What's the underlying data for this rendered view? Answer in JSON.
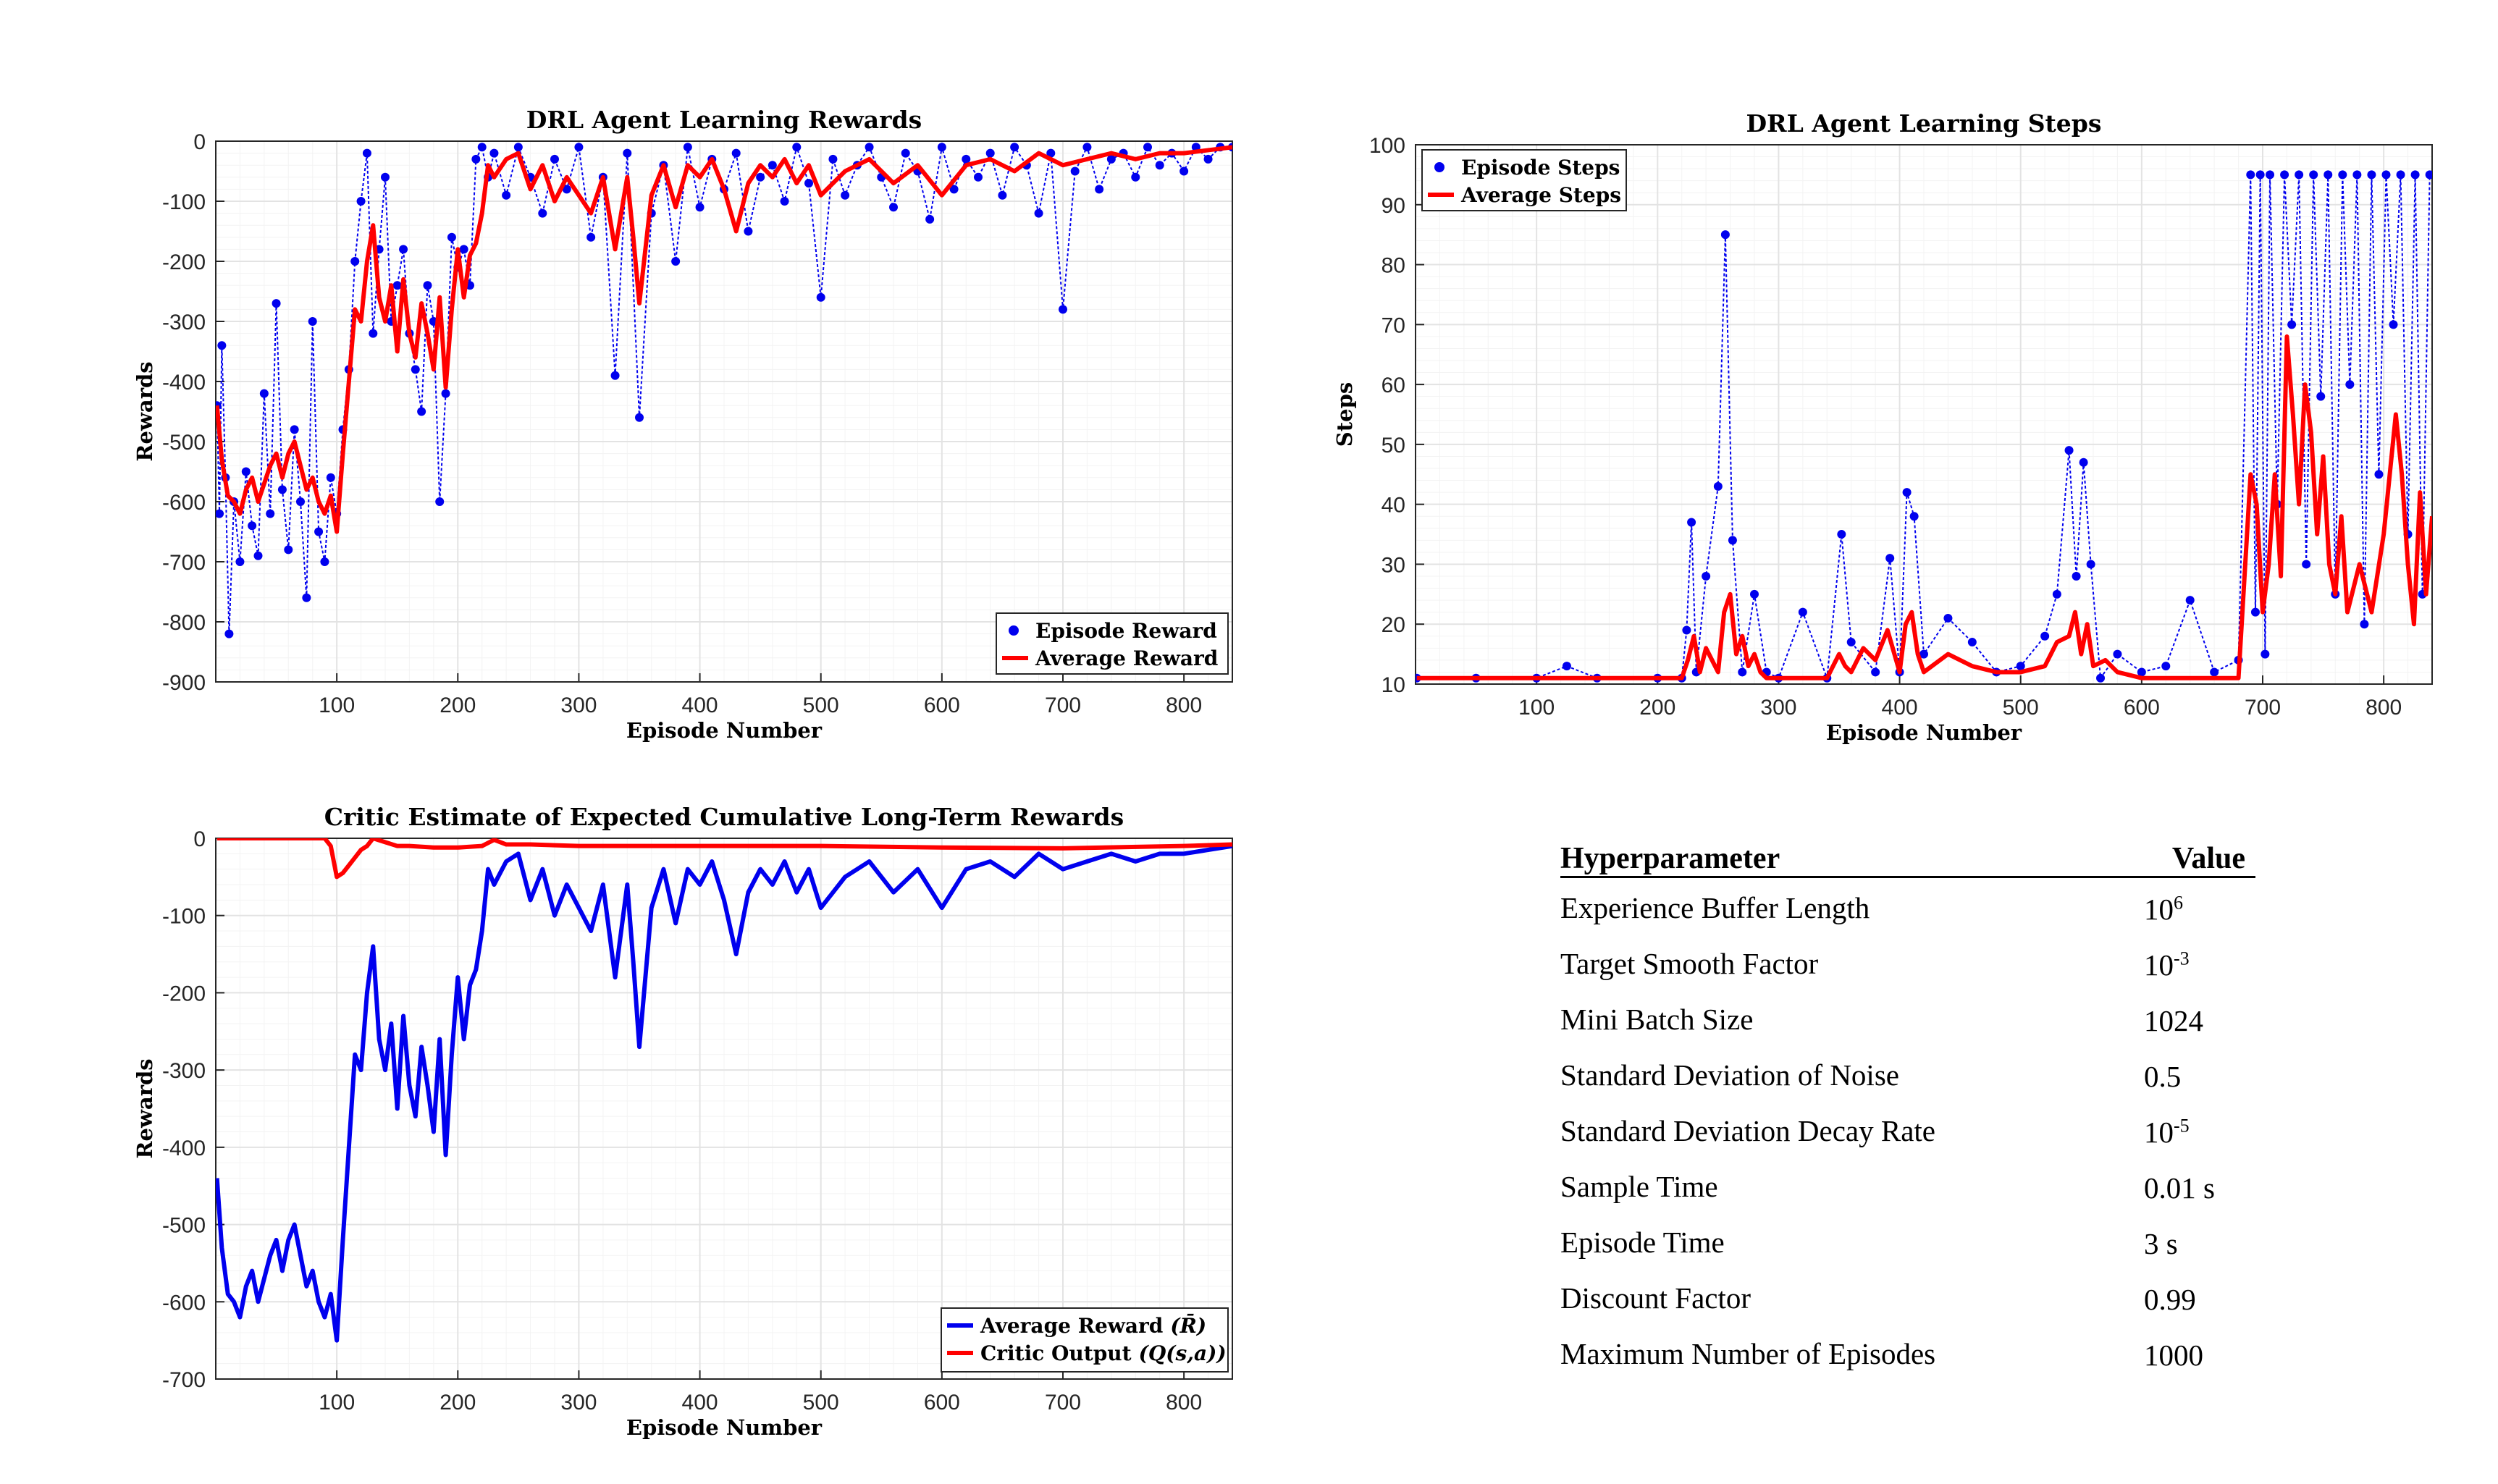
{
  "colors": {
    "blue": "#0000ee",
    "red": "#ff0000",
    "grid": "#e3e3e3",
    "minor": "#f3f3f3"
  },
  "table": {
    "header": {
      "name": "Hyperparameter",
      "value": "Value"
    },
    "rows": [
      {
        "name": "Experience Buffer Length",
        "value": "10",
        "sup": "6"
      },
      {
        "name": "Target Smooth Factor",
        "value": "10",
        "sup": "-3"
      },
      {
        "name": "Mini Batch Size",
        "value": "1024",
        "sup": ""
      },
      {
        "name": "Standard Deviation of Noise",
        "value": "0.5",
        "sup": ""
      },
      {
        "name": "Standard Deviation Decay Rate",
        "value": "10",
        "sup": "-5"
      },
      {
        "name": "Sample Time",
        "value": "0.01 s",
        "sup": ""
      },
      {
        "name": "Episode Time",
        "value": "3 s",
        "sup": ""
      },
      {
        "name": "Discount Factor",
        "value": "0.99",
        "sup": ""
      },
      {
        "name": "Maximum Number of Episodes",
        "value": "1000",
        "sup": ""
      }
    ]
  },
  "chart_data": [
    {
      "id": "rewards",
      "type": "line",
      "title": "DRL Agent Learning Rewards",
      "xlabel": "Episode Number",
      "ylabel": "Rewards",
      "xlim": [
        0,
        840
      ],
      "ylim": [
        -900,
        0
      ],
      "xticks": [
        100,
        200,
        300,
        400,
        500,
        600,
        700,
        800
      ],
      "yticks": [
        0,
        -100,
        -200,
        -300,
        -400,
        -500,
        -600,
        -700,
        -800,
        -900
      ],
      "grid": true,
      "legend": "bottom-right",
      "series": [
        {
          "name": "Episode Reward",
          "style": "markers",
          "x": [
            1,
            3,
            5,
            8,
            11,
            15,
            20,
            25,
            30,
            35,
            40,
            45,
            50,
            55,
            60,
            65,
            70,
            75,
            80,
            85,
            90,
            95,
            100,
            105,
            110,
            115,
            120,
            125,
            130,
            135,
            140,
            145,
            150,
            155,
            160,
            165,
            170,
            175,
            180,
            185,
            190,
            195,
            200,
            205,
            210,
            215,
            220,
            225,
            230,
            240,
            250,
            260,
            270,
            280,
            290,
            300,
            310,
            320,
            330,
            340,
            350,
            360,
            370,
            380,
            390,
            400,
            410,
            420,
            430,
            440,
            450,
            460,
            470,
            480,
            490,
            500,
            510,
            520,
            530,
            540,
            550,
            560,
            570,
            580,
            590,
            600,
            610,
            620,
            630,
            640,
            650,
            660,
            670,
            680,
            690,
            700,
            710,
            720,
            730,
            740,
            750,
            760,
            770,
            780,
            790,
            800,
            810,
            820,
            830,
            840
          ],
          "y": [
            -440,
            -620,
            -340,
            -560,
            -820,
            -600,
            -700,
            -550,
            -640,
            -690,
            -420,
            -620,
            -270,
            -580,
            -680,
            -480,
            -600,
            -760,
            -300,
            -650,
            -700,
            -560,
            -620,
            -480,
            -380,
            -200,
            -100,
            -20,
            -320,
            -180,
            -60,
            -300,
            -240,
            -180,
            -320,
            -380,
            -450,
            -240,
            -300,
            -600,
            -420,
            -160,
            -210,
            -180,
            -240,
            -30,
            -10,
            -60,
            -20,
            -90,
            -10,
            -60,
            -120,
            -30,
            -80,
            -10,
            -160,
            -60,
            -390,
            -20,
            -460,
            -120,
            -40,
            -200,
            -10,
            -110,
            -30,
            -80,
            -20,
            -150,
            -60,
            -40,
            -100,
            -10,
            -70,
            -260,
            -30,
            -90,
            -40,
            -10,
            -60,
            -110,
            -20,
            -50,
            -130,
            -10,
            -80,
            -30,
            -60,
            -20,
            -90,
            -10,
            -40,
            -120,
            -20,
            -280,
            -50,
            -10,
            -80,
            -30,
            -20,
            -60,
            -10,
            -40,
            -20,
            -50,
            -10,
            -30,
            -10,
            -10
          ]
        },
        {
          "name": "Average Reward",
          "style": "line",
          "x": [
            1,
            5,
            10,
            15,
            20,
            25,
            30,
            35,
            40,
            45,
            50,
            55,
            60,
            65,
            70,
            75,
            80,
            85,
            90,
            95,
            100,
            105,
            110,
            115,
            120,
            125,
            130,
            135,
            140,
            145,
            150,
            155,
            160,
            165,
            170,
            175,
            180,
            185,
            190,
            195,
            200,
            205,
            210,
            215,
            220,
            225,
            230,
            240,
            250,
            260,
            270,
            280,
            290,
            300,
            310,
            320,
            330,
            340,
            345,
            350,
            360,
            370,
            380,
            390,
            400,
            410,
            420,
            430,
            440,
            450,
            460,
            470,
            480,
            490,
            500,
            520,
            540,
            560,
            580,
            600,
            620,
            640,
            660,
            680,
            700,
            720,
            740,
            760,
            780,
            800,
            820,
            840
          ],
          "y": [
            -440,
            -530,
            -590,
            -600,
            -620,
            -580,
            -560,
            -600,
            -570,
            -540,
            -520,
            -560,
            -520,
            -500,
            -540,
            -580,
            -560,
            -600,
            -620,
            -590,
            -650,
            -520,
            -400,
            -280,
            -300,
            -200,
            -140,
            -260,
            -300,
            -240,
            -350,
            -230,
            -320,
            -360,
            -270,
            -320,
            -380,
            -260,
            -410,
            -280,
            -180,
            -260,
            -190,
            -170,
            -120,
            -40,
            -60,
            -30,
            -20,
            -80,
            -40,
            -100,
            -60,
            -90,
            -120,
            -60,
            -180,
            -60,
            -160,
            -270,
            -90,
            -40,
            -110,
            -40,
            -60,
            -30,
            -80,
            -150,
            -70,
            -40,
            -60,
            -30,
            -70,
            -40,
            -90,
            -50,
            -30,
            -70,
            -40,
            -90,
            -40,
            -30,
            -50,
            -20,
            -40,
            -30,
            -20,
            -30,
            -20,
            -20,
            -15,
            -10
          ]
        }
      ]
    },
    {
      "id": "steps",
      "type": "line",
      "title": "DRL Agent Learning Steps",
      "xlabel": "Episode Number",
      "ylabel": "Steps",
      "xlim": [
        0,
        840
      ],
      "ylim": [
        10,
        100
      ],
      "xticks": [
        100,
        200,
        300,
        400,
        500,
        600,
        700,
        800
      ],
      "yticks": [
        10,
        20,
        30,
        40,
        50,
        60,
        70,
        80,
        90,
        100
      ],
      "grid": true,
      "legend": "top-left",
      "series": [
        {
          "name": "Episode Steps",
          "style": "markers",
          "x": [
            1,
            50,
            100,
            125,
            150,
            200,
            220,
            224,
            228,
            232,
            240,
            250,
            256,
            262,
            270,
            280,
            290,
            300,
            320,
            340,
            352,
            360,
            380,
            392,
            400,
            406,
            412,
            420,
            440,
            460,
            480,
            500,
            520,
            530,
            540,
            546,
            552,
            558,
            566,
            580,
            600,
            620,
            640,
            660,
            680,
            690,
            694,
            698,
            702,
            706,
            712,
            718,
            724,
            730,
            736,
            742,
            748,
            754,
            760,
            766,
            772,
            778,
            784,
            790,
            796,
            802,
            808,
            814,
            820,
            826,
            832,
            838
          ],
          "y": [
            11,
            11,
            11,
            13,
            11,
            11,
            11,
            19,
            37,
            12,
            28,
            43,
            85,
            34,
            12,
            25,
            12,
            11,
            22,
            11,
            35,
            17,
            12,
            31,
            12,
            42,
            38,
            15,
            21,
            17,
            12,
            13,
            18,
            25,
            49,
            28,
            47,
            30,
            11,
            15,
            12,
            13,
            24,
            12,
            14,
            95,
            22,
            95,
            15,
            95,
            40,
            95,
            70,
            95,
            30,
            95,
            58,
            95,
            25,
            95,
            60,
            95,
            20,
            95,
            45,
            95,
            70,
            95,
            35,
            95,
            25,
            95
          ]
        },
        {
          "name": "Average Steps",
          "style": "line",
          "x": [
            1,
            220,
            225,
            230,
            235,
            240,
            245,
            250,
            255,
            260,
            265,
            270,
            275,
            280,
            285,
            290,
            300,
            320,
            340,
            350,
            355,
            360,
            370,
            380,
            390,
            400,
            405,
            410,
            415,
            420,
            440,
            460,
            480,
            500,
            520,
            530,
            540,
            545,
            550,
            555,
            560,
            570,
            580,
            600,
            620,
            640,
            660,
            680,
            690,
            695,
            700,
            705,
            710,
            715,
            720,
            725,
            730,
            735,
            740,
            745,
            750,
            755,
            760,
            765,
            770,
            780,
            790,
            800,
            810,
            815,
            820,
            825,
            830,
            835,
            840
          ],
          "y": [
            11,
            11,
            14,
            18,
            12,
            16,
            14,
            12,
            22,
            25,
            15,
            18,
            13,
            15,
            12,
            11,
            11,
            11,
            11,
            15,
            13,
            12,
            16,
            14,
            19,
            12,
            20,
            22,
            15,
            12,
            15,
            13,
            12,
            12,
            13,
            17,
            18,
            22,
            15,
            20,
            13,
            14,
            12,
            11,
            11,
            11,
            11,
            11,
            45,
            40,
            22,
            30,
            45,
            28,
            68,
            55,
            40,
            60,
            52,
            35,
            48,
            30,
            25,
            38,
            22,
            30,
            22,
            35,
            55,
            45,
            30,
            20,
            42,
            25,
            38
          ]
        }
      ]
    },
    {
      "id": "critic",
      "type": "line",
      "title": "Critic Estimate of Expected Cumulative Long-Term Rewards",
      "xlabel": "Episode Number",
      "ylabel": "Rewards",
      "xlim": [
        0,
        840
      ],
      "ylim": [
        -700,
        0
      ],
      "xticks": [
        100,
        200,
        300,
        400,
        500,
        600,
        700,
        800
      ],
      "yticks": [
        0,
        -100,
        -200,
        -300,
        -400,
        -500,
        -600,
        -700
      ],
      "grid": true,
      "legend": "bottom-right",
      "legend_symbols": [
        "R̄",
        "Q(s,a)"
      ],
      "series": [
        {
          "name": "Average Reward",
          "symbol": "(R̄)",
          "style": "line",
          "x": [
            1,
            5,
            10,
            15,
            20,
            25,
            30,
            35,
            40,
            45,
            50,
            55,
            60,
            65,
            70,
            75,
            80,
            85,
            90,
            95,
            100,
            105,
            110,
            115,
            120,
            125,
            130,
            135,
            140,
            145,
            150,
            155,
            160,
            165,
            170,
            175,
            180,
            185,
            190,
            195,
            200,
            205,
            210,
            215,
            220,
            225,
            230,
            240,
            250,
            260,
            270,
            280,
            290,
            300,
            310,
            320,
            330,
            340,
            345,
            350,
            360,
            370,
            380,
            390,
            400,
            410,
            420,
            430,
            440,
            450,
            460,
            470,
            480,
            490,
            500,
            520,
            540,
            560,
            580,
            600,
            620,
            640,
            660,
            680,
            700,
            720,
            740,
            760,
            780,
            800,
            820,
            840
          ],
          "y": [
            -440,
            -530,
            -590,
            -600,
            -620,
            -580,
            -560,
            -600,
            -570,
            -540,
            -520,
            -560,
            -520,
            -500,
            -540,
            -580,
            -560,
            -600,
            -620,
            -590,
            -650,
            -520,
            -400,
            -280,
            -300,
            -200,
            -140,
            -260,
            -300,
            -240,
            -350,
            -230,
            -320,
            -360,
            -270,
            -320,
            -380,
            -260,
            -410,
            -280,
            -180,
            -260,
            -190,
            -170,
            -120,
            -40,
            -60,
            -30,
            -20,
            -80,
            -40,
            -100,
            -60,
            -90,
            -120,
            -60,
            -180,
            -60,
            -160,
            -270,
            -90,
            -40,
            -110,
            -40,
            -60,
            -30,
            -80,
            -150,
            -70,
            -40,
            -60,
            -30,
            -70,
            -40,
            -90,
            -50,
            -30,
            -70,
            -40,
            -90,
            -40,
            -30,
            -50,
            -20,
            -40,
            -30,
            -20,
            -30,
            -20,
            -20,
            -15,
            -10
          ]
        },
        {
          "name": "Critic Output",
          "symbol": "(Q(s,a))",
          "style": "line",
          "x": [
            1,
            90,
            95,
            100,
            105,
            110,
            115,
            120,
            125,
            130,
            140,
            150,
            160,
            180,
            200,
            220,
            230,
            240,
            260,
            300,
            400,
            500,
            600,
            700,
            800,
            840
          ],
          "y": [
            0,
            0,
            -10,
            -50,
            -45,
            -35,
            -25,
            -15,
            -10,
            0,
            -5,
            -10,
            -10,
            -12,
            -12,
            -10,
            -2,
            -8,
            -8,
            -10,
            -10,
            -10,
            -12,
            -13,
            -10,
            -8
          ]
        }
      ]
    }
  ]
}
